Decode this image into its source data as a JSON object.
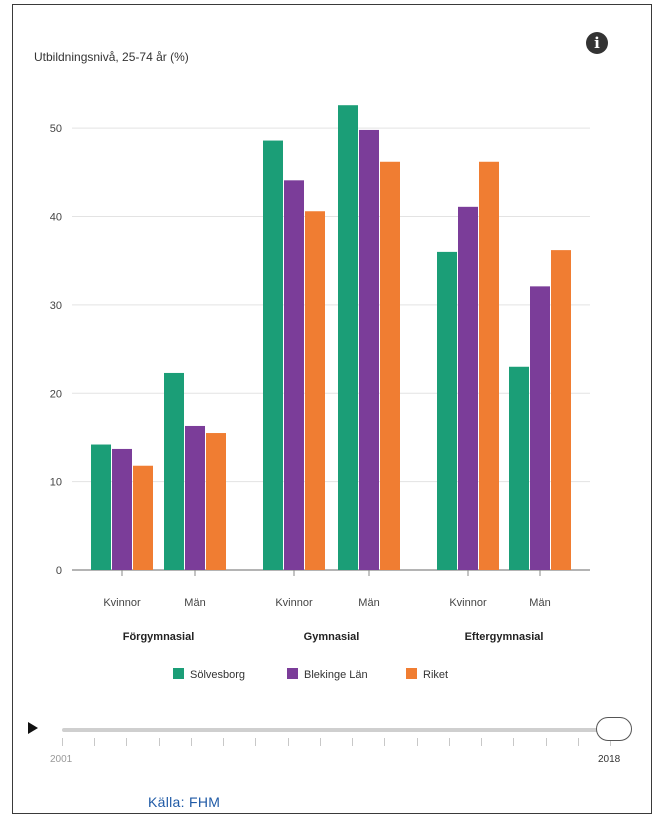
{
  "chart_title": "Utbildningsnivå, 25-74 år (%)",
  "info_icon": "info-icon",
  "chart_data": {
    "type": "bar",
    "title": "Utbildningsnivå, 25-74 år (%)",
    "ylim": [
      0,
      55
    ],
    "yticks": [
      0,
      10,
      20,
      30,
      40,
      50
    ],
    "grid": true,
    "legend_position": "bottom",
    "groups": [
      {
        "label": "Förgymnasial",
        "subcategories": [
          "Kvinnor",
          "Män"
        ]
      },
      {
        "label": "Gymnasial",
        "subcategories": [
          "Kvinnor",
          "Män"
        ]
      },
      {
        "label": "Eftergymnasial",
        "subcategories": [
          "Kvinnor",
          "Män"
        ]
      }
    ],
    "categories": [
      "Förgymnasial Kvinnor",
      "Förgymnasial Män",
      "Gymnasial Kvinnor",
      "Gymnasial Män",
      "Eftergymnasial Kvinnor",
      "Eftergymnasial Män"
    ],
    "series": [
      {
        "name": "Sölvesborg",
        "color": "#1b9e77",
        "values": [
          14.2,
          22.3,
          48.6,
          52.6,
          36.0,
          23.0
        ]
      },
      {
        "name": "Blekinge Län",
        "color": "#7b3d99",
        "values": [
          13.7,
          16.3,
          44.1,
          49.8,
          41.1,
          32.1
        ]
      },
      {
        "name": "Riket",
        "color": "#f07d32",
        "values": [
          11.8,
          15.5,
          40.6,
          46.2,
          46.2,
          36.2
        ]
      }
    ]
  },
  "timeline": {
    "min_label": "2001",
    "max_label": "2018",
    "position": 1.0
  },
  "source": "Källa: FHM"
}
